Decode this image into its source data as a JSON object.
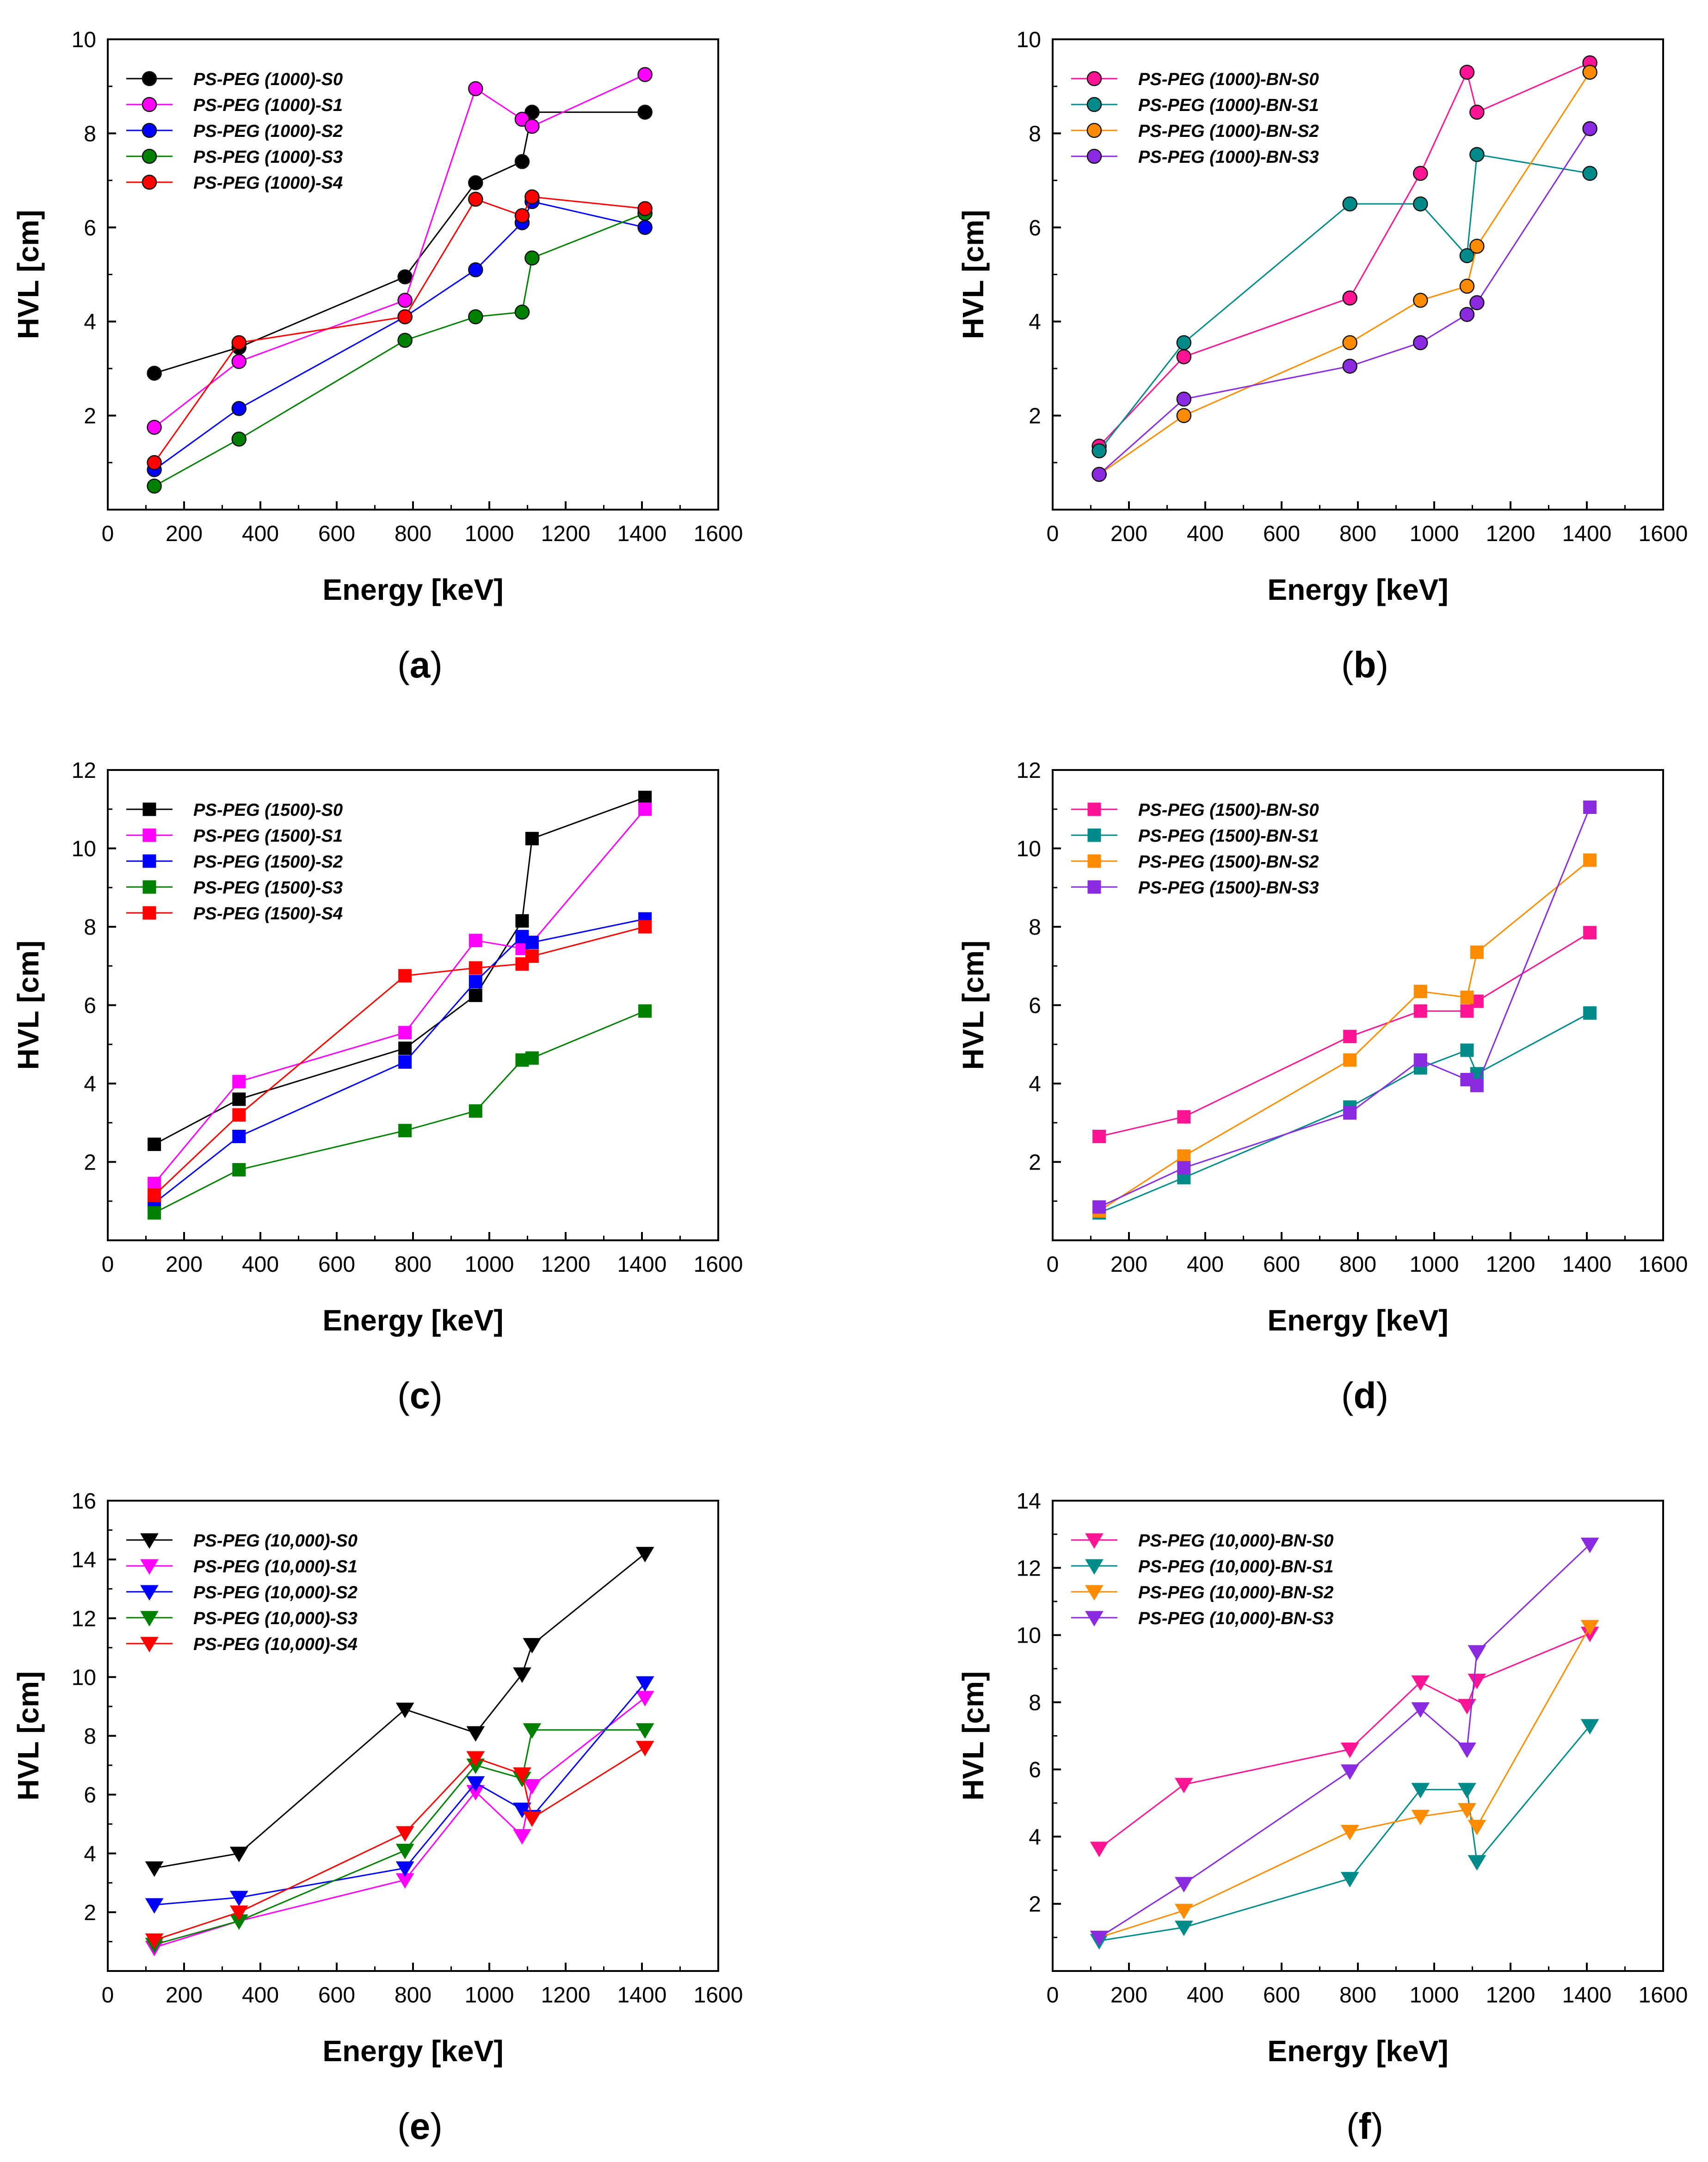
{
  "figure": {
    "title": ""
  },
  "chart_data": [
    {
      "panel": "a",
      "caption": "(a)",
      "type": "line",
      "marker": "circle",
      "xlabel": "Energy [keV]",
      "ylabel": "HVL [cm]",
      "xlim": [
        0,
        1600
      ],
      "ylim": [
        0,
        10
      ],
      "xticks": [
        0,
        200,
        400,
        600,
        800,
        1000,
        1200,
        1400,
        1600
      ],
      "yticks": [
        2,
        4,
        6,
        8,
        10
      ],
      "x": [
        122,
        344,
        779,
        964,
        1086,
        1112,
        1408
      ],
      "grid": false,
      "legend_position": "top-left",
      "series": [
        {
          "name": "PS-PEG (1000)-S0",
          "color": "#000000",
          "values": [
            2.9,
            3.45,
            4.95,
            6.95,
            7.4,
            8.45,
            8.45
          ]
        },
        {
          "name": "PS-PEG (1000)-S1",
          "color": "#ff00ff",
          "values": [
            1.75,
            3.15,
            4.45,
            8.95,
            8.3,
            8.15,
            9.25
          ]
        },
        {
          "name": "PS-PEG (1000)-S2",
          "color": "#0000ff",
          "values": [
            0.85,
            2.15,
            4.1,
            5.1,
            6.1,
            6.55,
            6.0
          ]
        },
        {
          "name": "PS-PEG (1000)-S3",
          "color": "#008000",
          "values": [
            0.5,
            1.5,
            3.6,
            4.1,
            4.2,
            5.35,
            6.3
          ]
        },
        {
          "name": "PS-PEG (1000)-S4",
          "color": "#ff0000",
          "values": [
            1.0,
            3.55,
            4.1,
            6.6,
            6.25,
            6.65,
            6.4
          ]
        }
      ]
    },
    {
      "panel": "b",
      "caption": "(b)",
      "type": "line",
      "marker": "circle",
      "xlabel": "Energy [keV]",
      "ylabel": "HVL [cm]",
      "xlim": [
        0,
        1600
      ],
      "ylim": [
        0,
        10
      ],
      "xticks": [
        0,
        200,
        400,
        600,
        800,
        1000,
        1200,
        1400,
        1600
      ],
      "yticks": [
        2,
        4,
        6,
        8,
        10
      ],
      "x": [
        122,
        344,
        779,
        964,
        1086,
        1112,
        1408
      ],
      "grid": false,
      "legend_position": "top-left",
      "series": [
        {
          "name": "PS-PEG (1000)-BN-S0",
          "color": "#ff1493",
          "values": [
            1.35,
            3.25,
            4.5,
            7.15,
            9.3,
            8.45,
            9.5
          ]
        },
        {
          "name": "PS-PEG (1000)-BN-S1",
          "color": "#008b8b",
          "values": [
            1.25,
            3.55,
            6.5,
            6.5,
            5.4,
            7.55,
            7.15
          ]
        },
        {
          "name": "PS-PEG (1000)-BN-S2",
          "color": "#ff8c00",
          "values": [
            0.75,
            2.0,
            3.55,
            4.45,
            4.75,
            5.6,
            9.3
          ]
        },
        {
          "name": "PS-PEG (1000)-BN-S3",
          "color": "#8a2be2",
          "values": [
            0.75,
            2.35,
            3.05,
            3.55,
            4.15,
            4.4,
            8.1
          ]
        }
      ]
    },
    {
      "panel": "c",
      "caption": "(c)",
      "type": "line",
      "marker": "square",
      "xlabel": "Energy [keV]",
      "ylabel": "HVL [cm]",
      "xlim": [
        0,
        1600
      ],
      "ylim": [
        0,
        12
      ],
      "xticks": [
        0,
        200,
        400,
        600,
        800,
        1000,
        1200,
        1400,
        1600
      ],
      "yticks": [
        2,
        4,
        6,
        8,
        10,
        12
      ],
      "x": [
        122,
        344,
        779,
        964,
        1086,
        1112,
        1408
      ],
      "grid": false,
      "legend_position": "top-left",
      "series": [
        {
          "name": "PS-PEG (1500)-S0",
          "color": "#000000",
          "values": [
            2.45,
            3.6,
            4.9,
            6.25,
            8.15,
            10.25,
            11.3
          ]
        },
        {
          "name": "PS-PEG (1500)-S1",
          "color": "#ff00ff",
          "values": [
            1.45,
            4.05,
            5.3,
            7.65,
            7.45,
            7.6,
            11.0
          ]
        },
        {
          "name": "PS-PEG (1500)-S2",
          "color": "#0000ff",
          "values": [
            0.95,
            2.65,
            4.55,
            6.6,
            7.75,
            7.6,
            8.2
          ]
        },
        {
          "name": "PS-PEG (1500)-S3",
          "color": "#008000",
          "values": [
            0.7,
            1.8,
            2.8,
            3.3,
            4.6,
            4.65,
            5.85
          ]
        },
        {
          "name": "PS-PEG (1500)-S4",
          "color": "#ff0000",
          "values": [
            1.15,
            3.2,
            6.75,
            6.95,
            7.05,
            7.25,
            8.0
          ]
        }
      ]
    },
    {
      "panel": "d",
      "caption": "(d)",
      "type": "line",
      "marker": "square",
      "xlabel": "Energy [keV]",
      "ylabel": "HVL [cm]",
      "xlim": [
        0,
        1600
      ],
      "ylim": [
        0,
        12
      ],
      "xticks": [
        0,
        200,
        400,
        600,
        800,
        1000,
        1200,
        1400,
        1600
      ],
      "yticks": [
        2,
        4,
        6,
        8,
        10,
        12
      ],
      "x": [
        122,
        344,
        779,
        964,
        1086,
        1112,
        1408
      ],
      "grid": false,
      "legend_position": "top-left",
      "series": [
        {
          "name": "PS-PEG (1500)-BN-S0",
          "color": "#ff1493",
          "values": [
            2.65,
            3.15,
            5.2,
            5.85,
            5.85,
            6.1,
            7.85
          ]
        },
        {
          "name": "PS-PEG (1500)-BN-S1",
          "color": "#008b8b",
          "values": [
            0.7,
            1.6,
            3.4,
            4.4,
            4.85,
            4.25,
            5.8
          ]
        },
        {
          "name": "PS-PEG (1500)-BN-S2",
          "color": "#ff8c00",
          "values": [
            0.75,
            2.15,
            4.6,
            6.35,
            6.2,
            7.35,
            9.7
          ]
        },
        {
          "name": "PS-PEG (1500)-BN-S3",
          "color": "#8a2be2",
          "values": [
            0.85,
            1.85,
            3.25,
            4.6,
            4.1,
            3.95,
            11.05
          ]
        }
      ]
    },
    {
      "panel": "e",
      "caption": "(e)",
      "type": "line",
      "marker": "triangle-down",
      "xlabel": "Energy [keV]",
      "ylabel": "HVL [cm]",
      "xlim": [
        0,
        1600
      ],
      "ylim": [
        0,
        16
      ],
      "xticks": [
        0,
        200,
        400,
        600,
        800,
        1000,
        1200,
        1400,
        1600
      ],
      "yticks": [
        2,
        4,
        6,
        8,
        10,
        12,
        14,
        16
      ],
      "x": [
        122,
        344,
        779,
        964,
        1086,
        1112,
        1408
      ],
      "grid": false,
      "legend_position": "top-left",
      "series": [
        {
          "name": "PS-PEG (10,000)-S0",
          "color": "#000000",
          "values": [
            3.5,
            4.0,
            8.9,
            8.1,
            10.1,
            11.1,
            14.2
          ]
        },
        {
          "name": "PS-PEG (10,000)-S1",
          "color": "#ff00ff",
          "values": [
            0.8,
            1.7,
            3.1,
            6.1,
            4.6,
            6.3,
            9.3
          ]
        },
        {
          "name": "PS-PEG (10,000)-S2",
          "color": "#0000ff",
          "values": [
            2.25,
            2.5,
            3.5,
            6.4,
            5.5,
            5.25,
            9.8
          ]
        },
        {
          "name": "PS-PEG (10,000)-S3",
          "color": "#008000",
          "values": [
            0.9,
            1.7,
            4.1,
            7.0,
            6.55,
            8.2,
            8.2
          ]
        },
        {
          "name": "PS-PEG (10,000)-S4",
          "color": "#ff0000",
          "values": [
            1.05,
            2.0,
            4.7,
            7.25,
            6.7,
            5.2,
            7.6
          ]
        }
      ]
    },
    {
      "panel": "f",
      "caption": "(f)",
      "type": "line",
      "marker": "triangle-down",
      "xlabel": "Energy [keV]",
      "ylabel": "HVL [cm]",
      "xlim": [
        0,
        1600
      ],
      "ylim": [
        0,
        14
      ],
      "xticks": [
        0,
        200,
        400,
        600,
        800,
        1000,
        1200,
        1400,
        1600
      ],
      "yticks": [
        2,
        4,
        6,
        8,
        10,
        12,
        14
      ],
      "x": [
        122,
        344,
        779,
        964,
        1086,
        1112,
        1408
      ],
      "grid": false,
      "legend_position": "top-left",
      "series": [
        {
          "name": "PS-PEG (10,000)-BN-S0",
          "color": "#ff1493",
          "values": [
            3.65,
            5.55,
            6.6,
            8.6,
            7.9,
            8.65,
            10.05
          ]
        },
        {
          "name": "PS-PEG (10,000)-BN-S1",
          "color": "#008b8b",
          "values": [
            0.9,
            1.3,
            2.75,
            5.4,
            5.4,
            3.25,
            7.3
          ]
        },
        {
          "name": "PS-PEG (10,000)-BN-S2",
          "color": "#ff8c00",
          "values": [
            1.0,
            1.8,
            4.15,
            4.6,
            4.8,
            4.3,
            10.25
          ]
        },
        {
          "name": "PS-PEG (10,000)-BN-S3",
          "color": "#8a2be2",
          "values": [
            1.0,
            2.6,
            5.95,
            7.8,
            6.6,
            9.5,
            12.7
          ]
        }
      ]
    }
  ]
}
